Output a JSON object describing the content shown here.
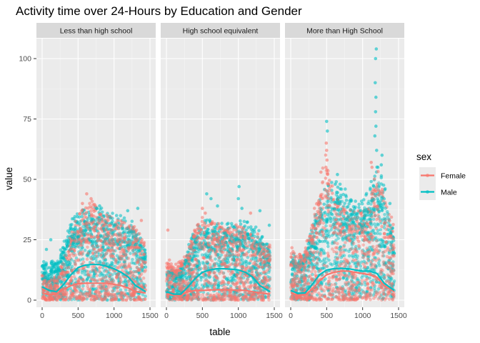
{
  "chart_data": {
    "type": "scatter",
    "title": "Activity time over 24-Hours by Education and Gender",
    "xlabel": "table",
    "ylabel": "value",
    "xlim": [
      0,
      1500
    ],
    "ylim": [
      0,
      105
    ],
    "x_ticks": [
      0,
      500,
      1000,
      1500
    ],
    "x_tick_labels": [
      "0",
      "500",
      "1000",
      "1500"
    ],
    "y_ticks": [
      0,
      25,
      50,
      75,
      100
    ],
    "y_tick_labels": [
      "0",
      "25",
      "50",
      "75",
      "100"
    ],
    "grid": true,
    "legend": {
      "title": "sex",
      "position": "right",
      "entries": [
        {
          "label": "Female",
          "color": "#F8766D"
        },
        {
          "label": "Male",
          "color": "#00BFC4"
        }
      ]
    },
    "facets": [
      {
        "label": "Less than high school",
        "smooth": {
          "Female": [
            [
              0,
              3.0
            ],
            [
              100,
              2.2
            ],
            [
              200,
              2.5
            ],
            [
              300,
              4.5
            ],
            [
              400,
              6.0
            ],
            [
              500,
              6.8
            ],
            [
              600,
              7.0
            ],
            [
              700,
              7.0
            ],
            [
              800,
              7.0
            ],
            [
              900,
              7.0
            ],
            [
              1000,
              6.5
            ],
            [
              1100,
              6.0
            ],
            [
              1200,
              5.0
            ],
            [
              1300,
              3.5
            ],
            [
              1440,
              3.0
            ]
          ],
          "Male": [
            [
              0,
              5.5
            ],
            [
              100,
              4.0
            ],
            [
              200,
              3.5
            ],
            [
              300,
              6.5
            ],
            [
              400,
              10.5
            ],
            [
              500,
              13.5
            ],
            [
              600,
              14.5
            ],
            [
              700,
              14.8
            ],
            [
              800,
              14.7
            ],
            [
              900,
              14.0
            ],
            [
              1000,
              13.0
            ],
            [
              1100,
              11.5
            ],
            [
              1200,
              9.5
            ],
            [
              1300,
              6.0
            ],
            [
              1440,
              3.5
            ]
          ]
        },
        "envelope": {
          "Female": [
            [
              0,
              12
            ],
            [
              100,
              9
            ],
            [
              200,
              10
            ],
            [
              300,
              16
            ],
            [
              400,
              27
            ],
            [
              500,
              34
            ],
            [
              600,
              38
            ],
            [
              700,
              40
            ],
            [
              800,
              38
            ],
            [
              900,
              35
            ],
            [
              1000,
              33
            ],
            [
              1100,
              32
            ],
            [
              1200,
              31
            ],
            [
              1300,
              30
            ],
            [
              1440,
              22
            ]
          ],
          "Male": [
            [
              0,
              17
            ],
            [
              100,
              16
            ],
            [
              200,
              17
            ],
            [
              300,
              24
            ],
            [
              400,
              32
            ],
            [
              500,
              36
            ],
            [
              600,
              37
            ],
            [
              700,
              39
            ],
            [
              800,
              38
            ],
            [
              900,
              36
            ],
            [
              1000,
              35
            ],
            [
              1100,
              34
            ],
            [
              1200,
              33
            ],
            [
              1300,
              32
            ],
            [
              1440,
              21
            ]
          ]
        },
        "peaks": [
          [
            620,
            44,
            "Female"
          ],
          [
            680,
            42,
            "Female"
          ],
          [
            560,
            40,
            "Female"
          ],
          [
            800,
            39,
            "Male"
          ],
          [
            760,
            38,
            "Male"
          ],
          [
            1190,
            37,
            "Male"
          ],
          [
            1330,
            38,
            "Male"
          ],
          [
            120,
            25,
            "Male"
          ],
          [
            60,
            21,
            "Male"
          ],
          [
            1380,
            33,
            "Female"
          ],
          [
            950,
            34,
            "Male"
          ],
          [
            1050,
            33,
            "Female"
          ]
        ]
      },
      {
        "label": "High school equivalent",
        "smooth": {
          "Female": [
            [
              0,
              2.5
            ],
            [
              100,
              2.0
            ],
            [
              200,
              2.0
            ],
            [
              300,
              3.5
            ],
            [
              400,
              4.0
            ],
            [
              500,
              4.0
            ],
            [
              600,
              4.2
            ],
            [
              700,
              4.3
            ],
            [
              800,
              4.3
            ],
            [
              900,
              4.2
            ],
            [
              1000,
              4.2
            ],
            [
              1100,
              4.0
            ],
            [
              1200,
              3.5
            ],
            [
              1300,
              3.0
            ],
            [
              1440,
              2.5
            ]
          ],
          "Male": [
            [
              0,
              3.5
            ],
            [
              100,
              2.5
            ],
            [
              200,
              2.5
            ],
            [
              300,
              5.5
            ],
            [
              400,
              9.0
            ],
            [
              500,
              11.5
            ],
            [
              600,
              12.5
            ],
            [
              700,
              13.0
            ],
            [
              800,
              13.0
            ],
            [
              900,
              12.8
            ],
            [
              1000,
              12.5
            ],
            [
              1100,
              11.5
            ],
            [
              1200,
              9.5
            ],
            [
              1300,
              6.0
            ],
            [
              1440,
              3.5
            ]
          ]
        },
        "envelope": {
          "Female": [
            [
              0,
              18
            ],
            [
              100,
              14
            ],
            [
              200,
              16
            ],
            [
              300,
              20
            ],
            [
              400,
              30
            ],
            [
              500,
              34
            ],
            [
              600,
              32
            ],
            [
              700,
              31
            ],
            [
              800,
              30
            ],
            [
              900,
              30
            ],
            [
              1000,
              31
            ],
            [
              1100,
              30
            ],
            [
              1200,
              28
            ],
            [
              1300,
              26
            ],
            [
              1440,
              22
            ]
          ],
          "Male": [
            [
              0,
              15
            ],
            [
              100,
              12
            ],
            [
              200,
              13
            ],
            [
              300,
              22
            ],
            [
              400,
              29
            ],
            [
              500,
              32
            ],
            [
              600,
              33
            ],
            [
              700,
              31
            ],
            [
              800,
              31
            ],
            [
              900,
              31
            ],
            [
              1000,
              32
            ],
            [
              1100,
              32
            ],
            [
              1200,
              30
            ],
            [
              1300,
              29
            ],
            [
              1440,
              22
            ]
          ]
        },
        "peaks": [
          [
            560,
            44,
            "Male"
          ],
          [
            620,
            42,
            "Male"
          ],
          [
            500,
            38,
            "Female"
          ],
          [
            540,
            36,
            "Female"
          ],
          [
            710,
            39,
            "Male"
          ],
          [
            1000,
            42,
            "Male"
          ],
          [
            1010,
            47,
            "Male"
          ],
          [
            1050,
            38,
            "Male"
          ],
          [
            1170,
            36,
            "Female"
          ],
          [
            1300,
            37,
            "Male"
          ],
          [
            20,
            29,
            "Female"
          ],
          [
            1430,
            31,
            "Male"
          ]
        ]
      },
      {
        "label": "More than High School",
        "smooth": {
          "Female": [
            [
              0,
              3.0
            ],
            [
              100,
              2.0
            ],
            [
              200,
              2.2
            ],
            [
              300,
              4.5
            ],
            [
              400,
              8.0
            ],
            [
              500,
              10.5
            ],
            [
              600,
              11.5
            ],
            [
              700,
              12.0
            ],
            [
              800,
              12.0
            ],
            [
              900,
              11.5
            ],
            [
              1000,
              11.0
            ],
            [
              1100,
              10.5
            ],
            [
              1200,
              9.5
            ],
            [
              1300,
              6.0
            ],
            [
              1440,
              3.5
            ]
          ],
          "Male": [
            [
              0,
              4.0
            ],
            [
              100,
              2.8
            ],
            [
              200,
              3.0
            ],
            [
              300,
              6.5
            ],
            [
              400,
              10.5
            ],
            [
              500,
              12.5
            ],
            [
              600,
              13.0
            ],
            [
              700,
              13.2
            ],
            [
              800,
              13.0
            ],
            [
              900,
              12.5
            ],
            [
              1000,
              12.0
            ],
            [
              1100,
              12.0
            ],
            [
              1200,
              11.0
            ],
            [
              1300,
              7.0
            ],
            [
              1440,
              4.0
            ]
          ]
        },
        "envelope": {
          "Female": [
            [
              0,
              22
            ],
            [
              100,
              18
            ],
            [
              200,
              20
            ],
            [
              300,
              35
            ],
            [
              400,
              45
            ],
            [
              500,
              68
            ],
            [
              600,
              42
            ],
            [
              700,
              40
            ],
            [
              800,
              38
            ],
            [
              900,
              36
            ],
            [
              1000,
              36
            ],
            [
              1100,
              38
            ],
            [
              1200,
              55
            ],
            [
              1300,
              42
            ],
            [
              1440,
              30
            ]
          ],
          "Male": [
            [
              0,
              20
            ],
            [
              100,
              17
            ],
            [
              200,
              19
            ],
            [
              300,
              30
            ],
            [
              400,
              40
            ],
            [
              500,
              47
            ],
            [
              600,
              50
            ],
            [
              700,
              48
            ],
            [
              800,
              44
            ],
            [
              900,
              40
            ],
            [
              1000,
              42
            ],
            [
              1100,
              46
            ],
            [
              1200,
              56
            ],
            [
              1300,
              48
            ],
            [
              1440,
              28
            ]
          ]
        },
        "peaks": [
          [
            1190,
            104,
            "Male"
          ],
          [
            1180,
            100,
            "Male"
          ],
          [
            1175,
            90,
            "Male"
          ],
          [
            1185,
            84,
            "Male"
          ],
          [
            1180,
            78,
            "Male"
          ],
          [
            1185,
            72,
            "Male"
          ],
          [
            1170,
            68,
            "Male"
          ],
          [
            1195,
            62,
            "Male"
          ],
          [
            500,
            74,
            "Male"
          ],
          [
            510,
            70,
            "Male"
          ],
          [
            495,
            65,
            "Female"
          ],
          [
            500,
            62,
            "Female"
          ],
          [
            505,
            58,
            "Female"
          ],
          [
            490,
            55,
            "Female"
          ],
          [
            420,
            53,
            "Female"
          ],
          [
            1270,
            60,
            "Male"
          ],
          [
            1260,
            56,
            "Male"
          ],
          [
            1120,
            57,
            "Female"
          ],
          [
            1130,
            55,
            "Female"
          ],
          [
            1240,
            45,
            "Female"
          ],
          [
            620,
            48,
            "Male"
          ],
          [
            650,
            52,
            "Male"
          ],
          [
            1380,
            40,
            "Male"
          ]
        ]
      }
    ]
  }
}
